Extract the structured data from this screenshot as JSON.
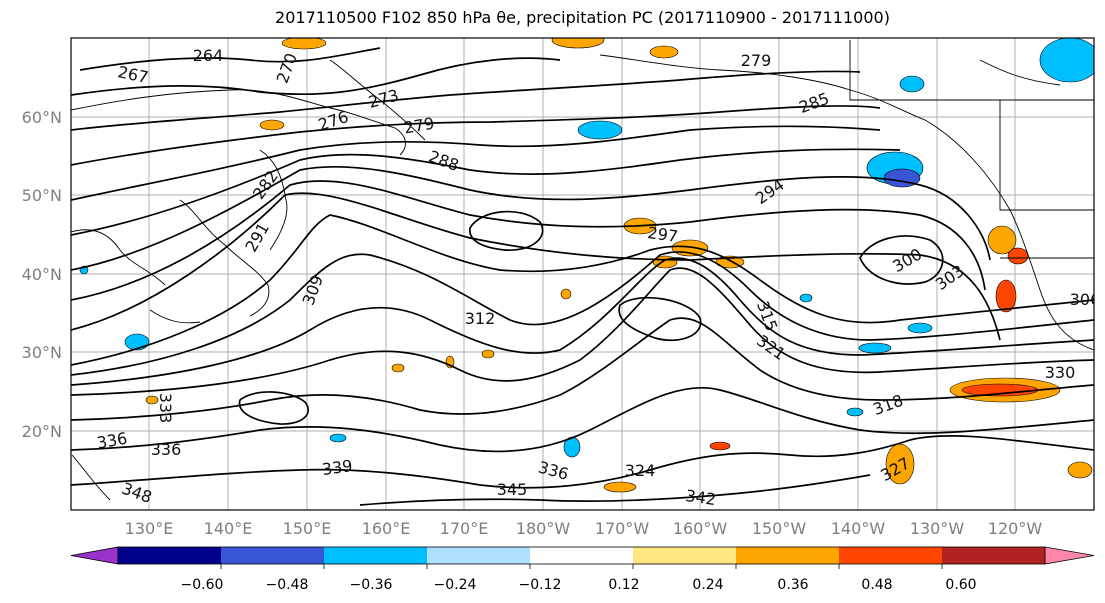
{
  "figure": {
    "title": "2017110500 F102 850 hPa θe, precipitation PC (2017110900 - 2017111000)"
  },
  "map": {
    "projection": "PlateCarree",
    "lon_range": [
      120,
      253
    ],
    "lat_range": [
      10,
      70
    ],
    "lat_labels": [
      "20°N",
      "30°N",
      "40°N",
      "50°N",
      "60°N"
    ],
    "lon_labels": [
      "130°E",
      "140°E",
      "150°E",
      "160°E",
      "170°E",
      "180°W",
      "170°W",
      "160°W",
      "150°W",
      "140°W",
      "130°W",
      "120°W"
    ],
    "contour_color": "#000000",
    "contour_labels": [
      "264",
      "267",
      "270",
      "273",
      "276",
      "279",
      "279",
      "282",
      "285",
      "288",
      "291",
      "294",
      "297",
      "300",
      "303",
      "306",
      "309",
      "312",
      "315",
      "318",
      "321",
      "324",
      "327",
      "330",
      "333",
      "336",
      "336",
      "336",
      "339",
      "342",
      "345",
      "348"
    ]
  },
  "colorbar": {
    "ticks": [
      "−0.60",
      "−0.48",
      "−0.36",
      "−0.24",
      "−0.12",
      "0.12",
      "0.24",
      "0.36",
      "0.48",
      "0.60"
    ],
    "colors": [
      "#9932cc",
      "#00008b",
      "#3755d4",
      "#00bfff",
      "#b0e0ff",
      "#ffffff",
      "#ffe680",
      "#ffa500",
      "#ff4500",
      "#b22222",
      "#ff88aa"
    ],
    "extend": "both"
  }
}
